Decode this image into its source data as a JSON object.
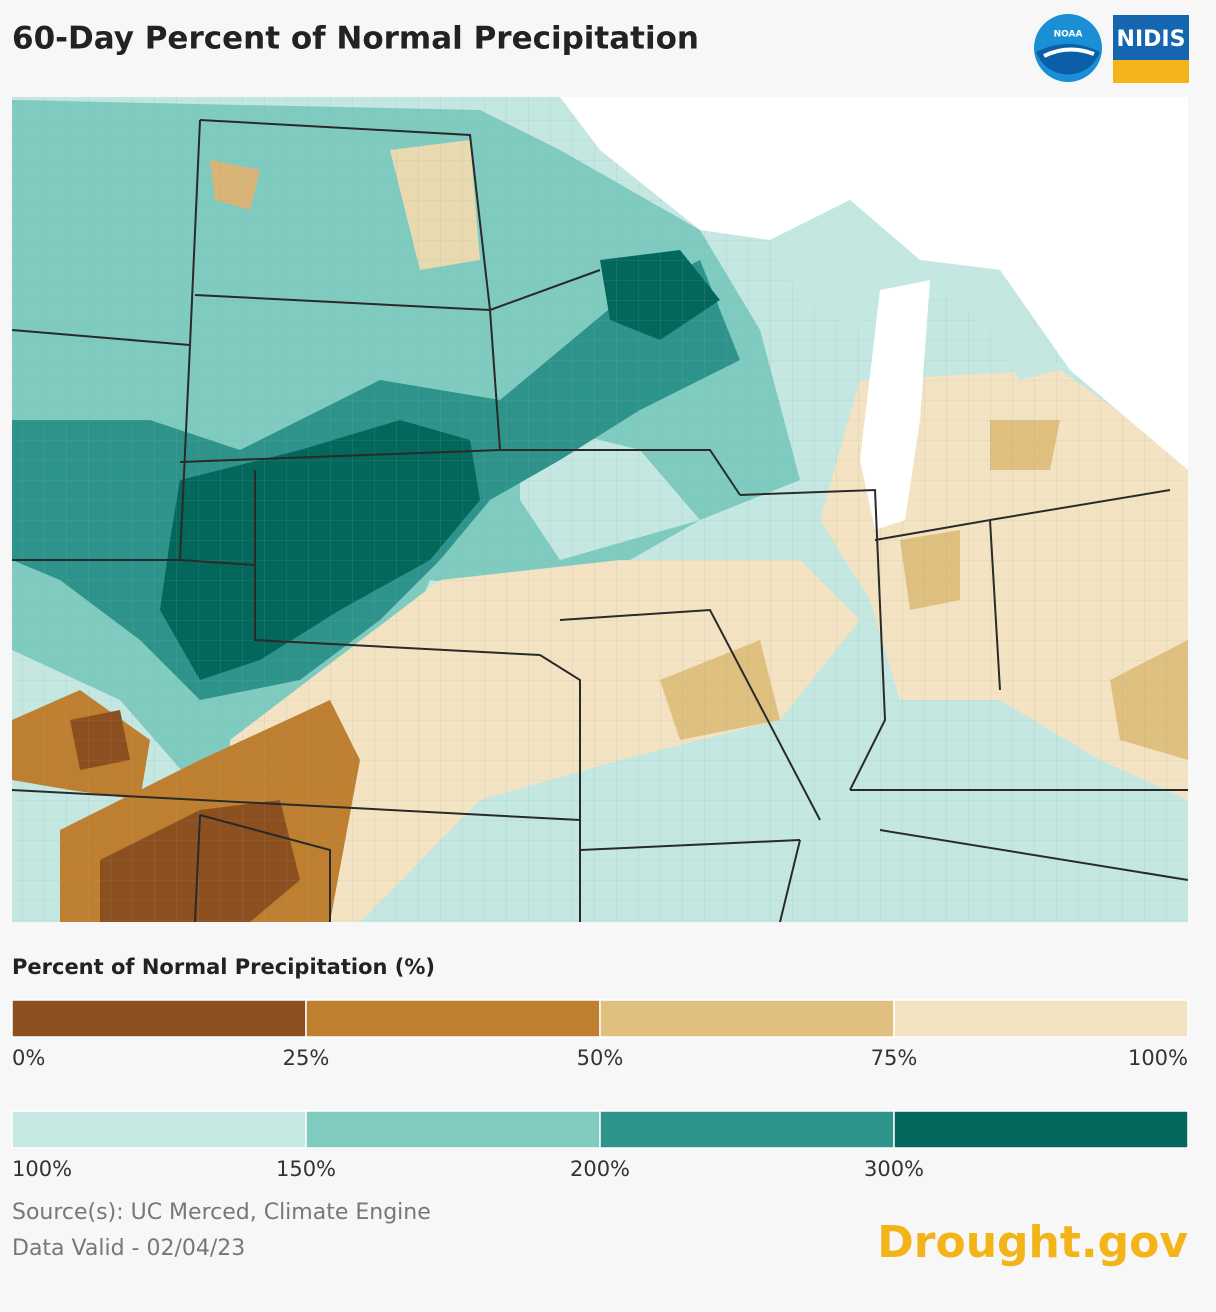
{
  "header": {
    "title": "60-Day Percent of Normal Precipitation",
    "logos": [
      "NOAA",
      "NIDIS"
    ]
  },
  "legend": {
    "title": "Percent of Normal Precipitation (%)",
    "scales": [
      {
        "colors": [
          "#8c4f1f",
          "#bf7f31",
          "#dfc07f",
          "#f3e3c2"
        ],
        "ticks": [
          "0%",
          "25%",
          "50%",
          "75%",
          "100%"
        ]
      },
      {
        "colors": [
          "#c6e9e3",
          "#7fcbbf",
          "#2e948b",
          "#04675b"
        ],
        "ticks": [
          "100%",
          "150%",
          "200%",
          "300%"
        ]
      }
    ]
  },
  "footer": {
    "source": "Source(s): UC Merced, Climate Engine",
    "date": "Data Valid - 02/04/23",
    "brand": "Drought.gov"
  }
}
